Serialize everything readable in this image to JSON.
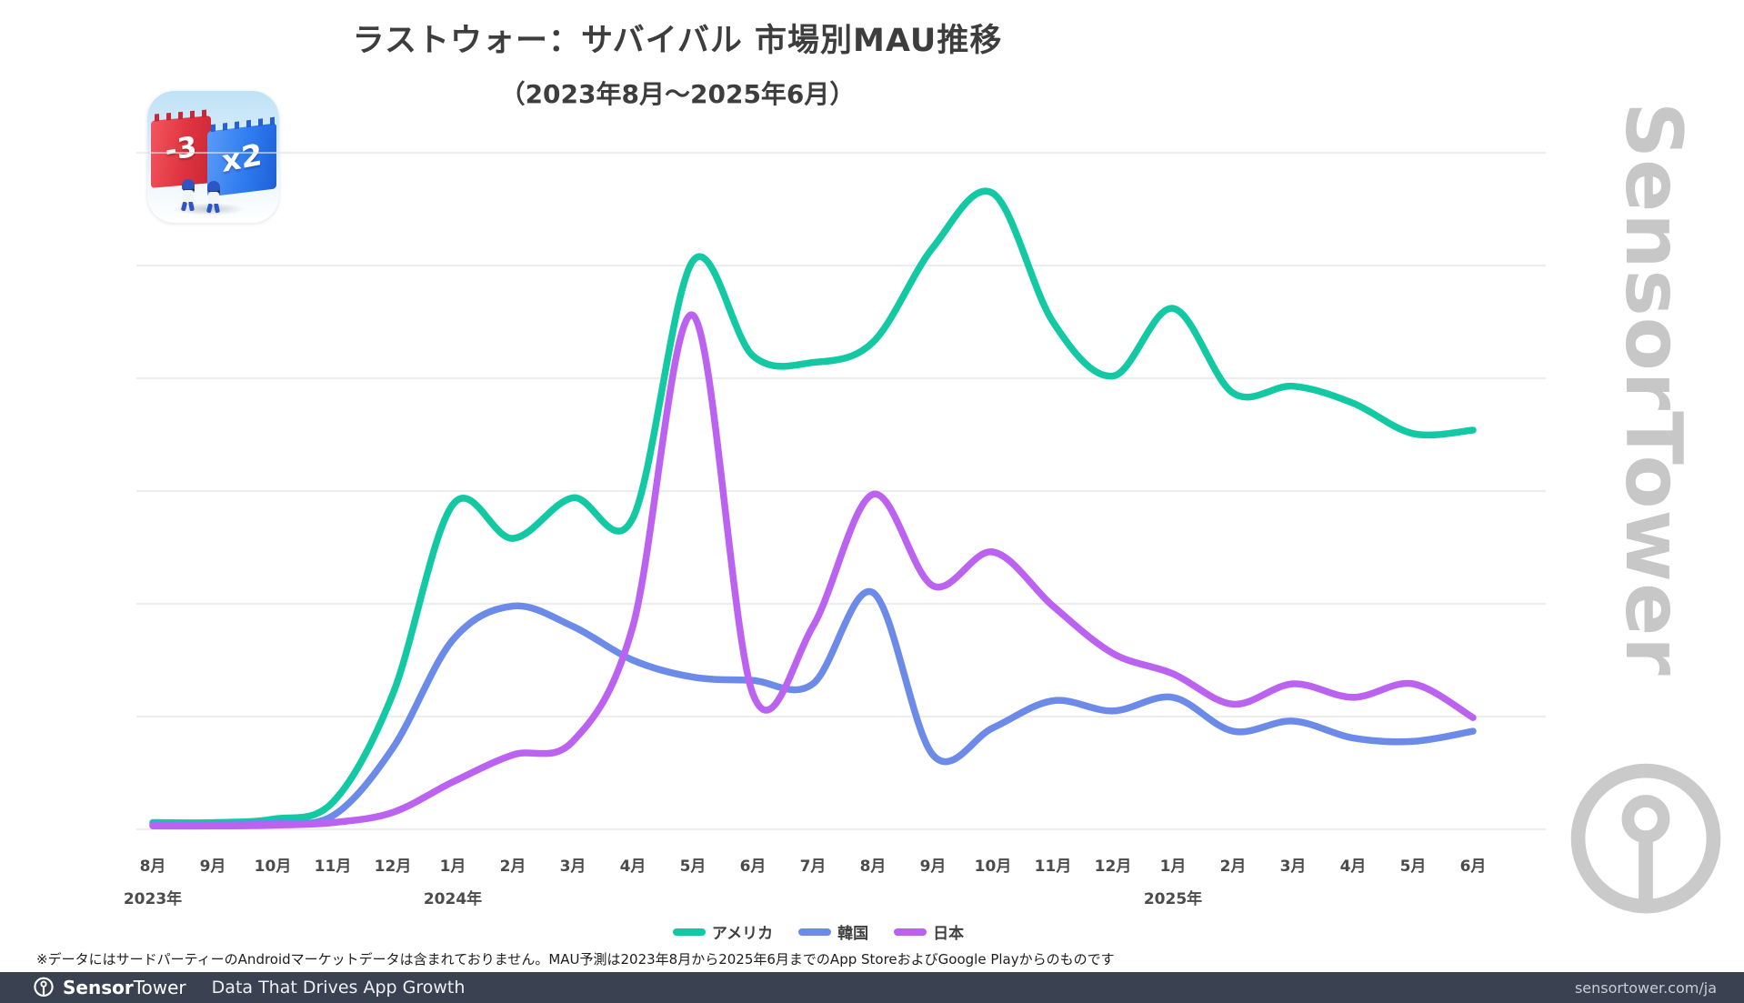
{
  "title": "ラストウォー：サバイバル 市場別MAU推移",
  "subtitle": "（2023年8月〜2025年6月）",
  "app_icon": {
    "name": "Last War Survival app icon",
    "minus_text": "-3",
    "multiply_text": "x2"
  },
  "chart_data": {
    "type": "line",
    "x_labels": [
      "8月",
      "9月",
      "10月",
      "11月",
      "12月",
      "1月",
      "2月",
      "3月",
      "4月",
      "5月",
      "6月",
      "7月",
      "8月",
      "9月",
      "10月",
      "11月",
      "12月",
      "1月",
      "2月",
      "3月",
      "4月",
      "5月",
      "6月"
    ],
    "year_labels": [
      {
        "label": "2023年",
        "month_index": 0
      },
      {
        "label": "2024年",
        "month_index": 5
      },
      {
        "label": "2025年",
        "month_index": 17
      }
    ],
    "series": [
      {
        "name": "アメリカ",
        "color": "#12C9A4",
        "values": [
          1,
          1,
          1.5,
          4,
          20,
          48,
          43,
          49,
          46,
          84,
          70,
          69,
          72,
          86,
          94,
          75,
          67,
          77,
          64.5,
          65.5,
          63,
          58.5,
          59
        ]
      },
      {
        "name": "韓国",
        "color": "#6C8BE9",
        "values": [
          0.7,
          0.7,
          1,
          2,
          12,
          28,
          33,
          30,
          25,
          22.5,
          22,
          21.5,
          35,
          11,
          15,
          19,
          17.5,
          19.5,
          14.5,
          16,
          13.5,
          13,
          14.5
        ]
      },
      {
        "name": "日本",
        "color": "#BB62F1",
        "values": [
          0.5,
          0.5,
          0.6,
          1,
          2.5,
          7,
          11,
          13,
          30,
          76,
          20,
          30,
          49.5,
          36,
          41,
          33,
          26,
          23,
          18.5,
          21.5,
          19.5,
          21.5,
          16.5
        ]
      }
    ],
    "ylim": [
      0,
      100
    ],
    "grid": true,
    "gridline_count": 7,
    "y_tick_labels_visible": false,
    "legend_position": "bottom"
  },
  "footnote": "※データにはサードパーティーのAndroidマーケットデータは含まれておりません。MAU予測は2023年8月から2025年6月までのApp StoreおよびGoogle Playからのものです",
  "footer": {
    "brand_bold": "Sensor",
    "brand_regular": "Tower",
    "tagline": "Data That Drives App Growth",
    "url": "sensortower.com/ja"
  },
  "watermark": {
    "text": "SensorTower"
  }
}
